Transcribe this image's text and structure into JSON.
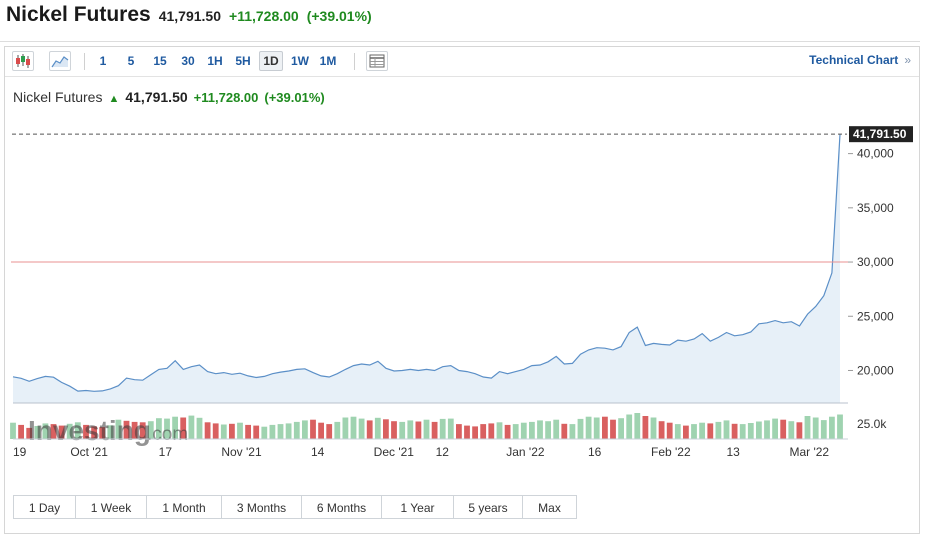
{
  "header": {
    "title": "Nickel Futures",
    "price": "41,791.50",
    "change": "+11,728.00",
    "change_pct": "(+39.01%)"
  },
  "toolbar": {
    "icons": [
      "candlestick-icon",
      "area-chart-icon",
      "table-view-icon"
    ],
    "timeframes": [
      {
        "label": "1"
      },
      {
        "label": "5"
      },
      {
        "label": "15"
      },
      {
        "label": "30"
      },
      {
        "label": "1H"
      },
      {
        "label": "5H"
      },
      {
        "label": "1D",
        "active": true
      },
      {
        "label": "1W"
      },
      {
        "label": "1M"
      }
    ],
    "technical_chart": "Technical Chart",
    "technical_chart_chevron": "»"
  },
  "chart_title": {
    "name": "Nickel Futures",
    "arrow": "▲",
    "price": "41,791.50",
    "change": "+11,728.00",
    "change_pct": "(+39.01%)"
  },
  "watermark": {
    "brand": "Investing",
    "suffix": ".com"
  },
  "chart_data": {
    "type": "area",
    "series": [
      {
        "values": [
          19420,
          19280,
          19000,
          19250,
          19450,
          19380,
          18900,
          18550,
          18100,
          18150,
          18080,
          18120,
          18300,
          18600,
          19300,
          19150,
          19100,
          19600,
          20100,
          20200,
          20900,
          20100,
          20350,
          20500,
          19900,
          19700,
          19800,
          19650,
          19750,
          19500,
          19350,
          19450,
          19700,
          19850,
          19950,
          20100,
          20150,
          19800,
          19500,
          19400,
          19700,
          20100,
          20450,
          20600,
          20500,
          20850,
          20200,
          19950,
          20000,
          20100,
          20000,
          20100,
          20000,
          20350,
          20450,
          20000,
          19900,
          19700,
          19400,
          19300,
          19900,
          19700,
          19900,
          20100,
          20450,
          20500,
          20800,
          21300,
          20600,
          20650,
          21500,
          21900,
          22100,
          22050,
          21900,
          22200,
          23500,
          24000,
          22300,
          22500,
          22400,
          22350,
          22800,
          22700,
          22900,
          23400,
          22700,
          23050,
          23500,
          23200,
          23300,
          23550,
          24300,
          24400,
          24600,
          24400,
          24500,
          24100,
          25200,
          25900,
          26900,
          29000,
          41791.5
        ]
      }
    ],
    "volume": [
      44,
      38,
      30,
      35,
      42,
      40,
      36,
      41,
      45,
      38,
      34,
      32,
      37,
      52,
      49,
      46,
      45,
      48,
      56,
      55,
      60,
      58,
      63,
      57,
      45,
      42,
      39,
      41,
      44,
      38,
      36,
      33,
      38,
      40,
      42,
      46,
      50,
      52,
      44,
      40,
      46,
      58,
      60,
      55,
      50,
      57,
      53,
      48,
      46,
      50,
      47,
      52,
      46,
      54,
      55,
      40,
      36,
      34,
      40,
      42,
      45,
      38,
      40,
      44,
      46,
      50,
      48,
      52,
      41,
      40,
      54,
      60,
      58,
      60,
      52,
      56,
      66,
      70,
      62,
      58,
      48,
      44,
      40,
      36,
      40,
      44,
      42,
      46,
      50,
      41,
      40,
      43,
      47,
      50,
      55,
      52,
      48,
      45,
      62,
      58,
      51,
      60,
      66
    ],
    "volume_up": [
      true,
      false,
      false,
      true,
      true,
      false,
      false,
      true,
      true,
      false,
      false,
      false,
      true,
      true,
      false,
      false,
      false,
      true,
      true,
      true,
      true,
      false,
      true,
      true,
      false,
      false,
      true,
      false,
      true,
      false,
      false,
      true,
      true,
      true,
      true,
      true,
      true,
      false,
      false,
      false,
      true,
      true,
      true,
      true,
      false,
      true,
      false,
      false,
      true,
      true,
      false,
      true,
      false,
      true,
      true,
      false,
      false,
      false,
      false,
      false,
      true,
      false,
      true,
      true,
      true,
      true,
      true,
      true,
      false,
      true,
      true,
      true,
      true,
      false,
      false,
      true,
      true,
      true,
      false,
      true,
      false,
      false,
      true,
      false,
      true,
      true,
      false,
      true,
      true,
      false,
      true,
      true,
      true,
      true,
      true,
      false,
      true,
      false,
      true,
      true,
      true,
      true,
      true
    ],
    "x_ticks": [
      {
        "index": 0,
        "label": "19"
      },
      {
        "index": 11,
        "label": "Oct '21"
      },
      {
        "index": 22,
        "label": "17"
      },
      {
        "index": 33,
        "label": "Nov '21"
      },
      {
        "index": 44,
        "label": "14"
      },
      {
        "index": 55,
        "label": "Dec '21"
      },
      {
        "index": 62,
        "label": "12"
      },
      {
        "index": 74,
        "label": "Jan '22"
      },
      {
        "index": 84,
        "label": "16"
      },
      {
        "index": 95,
        "label": "Feb '22"
      },
      {
        "index": 104,
        "label": "13"
      },
      {
        "index": 115,
        "label": "Mar '22"
      }
    ],
    "y_ticks": [
      20000,
      25000,
      30000,
      35000,
      40000
    ],
    "y_tick_labels": [
      "20,000",
      "25,000",
      "30,000",
      "35,000",
      "40,000"
    ],
    "ylim": [
      17000,
      41900
    ],
    "volume_axis_label": "25.0k",
    "reference_line": 30000,
    "last_price_label": "41,791.50",
    "colors": {
      "line": "#5b8fc7",
      "fill": "#e3edf7",
      "vol_up": "#9fd3b0",
      "vol_down": "#d96060",
      "ref_line": "#e89090",
      "last_bg": "#222222"
    },
    "grid": false
  },
  "ranges": [
    {
      "label": "1 Day"
    },
    {
      "label": "1 Week"
    },
    {
      "label": "1 Month"
    },
    {
      "label": "3 Months"
    },
    {
      "label": "6 Months"
    },
    {
      "label": "1 Year"
    },
    {
      "label": "5 years"
    },
    {
      "label": "Max"
    }
  ]
}
